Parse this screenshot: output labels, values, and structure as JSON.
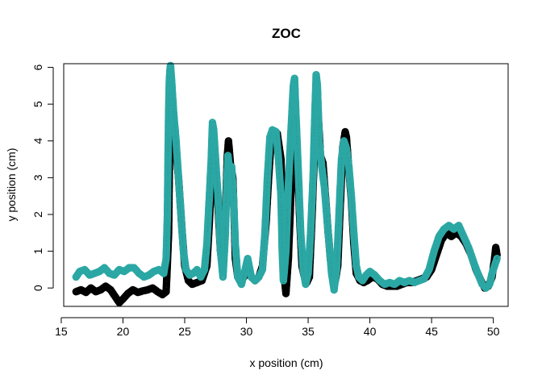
{
  "chart_data": {
    "type": "scatter",
    "title": "ZOC",
    "xlabel": "x position (cm)",
    "ylabel": "y position (cm)",
    "xlim": [
      15.2,
      51.2
    ],
    "ylim": [
      -0.5,
      6.1
    ],
    "xticks": [
      15,
      20,
      25,
      30,
      35,
      40,
      45,
      50
    ],
    "yticks": [
      0,
      1,
      2,
      3,
      4,
      5,
      6
    ],
    "grid": false,
    "series": [
      {
        "color": "#000000",
        "points": [
          [
            16.2,
            -0.1
          ],
          [
            16.6,
            -0.05
          ],
          [
            17.0,
            -0.12
          ],
          [
            17.4,
            0.0
          ],
          [
            17.8,
            -0.1
          ],
          [
            18.2,
            -0.05
          ],
          [
            18.6,
            0.05
          ],
          [
            19.0,
            -0.05
          ],
          [
            19.4,
            -0.25
          ],
          [
            19.7,
            -0.4
          ],
          [
            20.0,
            -0.3
          ],
          [
            20.4,
            -0.15
          ],
          [
            20.8,
            -0.05
          ],
          [
            21.2,
            -0.12
          ],
          [
            21.6,
            -0.08
          ],
          [
            22.0,
            -0.05
          ],
          [
            22.4,
            0.0
          ],
          [
            22.8,
            -0.1
          ],
          [
            23.2,
            -0.18
          ],
          [
            23.5,
            -0.1
          ],
          [
            23.7,
            1.5
          ],
          [
            23.75,
            3.0
          ],
          [
            23.8,
            4.5
          ],
          [
            23.85,
            5.1
          ],
          [
            23.9,
            5.3
          ],
          [
            24.0,
            4.8
          ],
          [
            24.2,
            4.0
          ],
          [
            24.5,
            3.0
          ],
          [
            24.8,
            1.5
          ],
          [
            25.0,
            0.6
          ],
          [
            25.3,
            0.2
          ],
          [
            25.6,
            0.1
          ],
          [
            26.0,
            0.15
          ],
          [
            26.4,
            0.2
          ],
          [
            26.8,
            0.6
          ],
          [
            27.0,
            1.8
          ],
          [
            27.2,
            3.2
          ],
          [
            27.35,
            4.0
          ],
          [
            27.5,
            3.4
          ],
          [
            27.7,
            2.2
          ],
          [
            27.9,
            1.0
          ],
          [
            28.1,
            0.5
          ],
          [
            28.3,
            2.0
          ],
          [
            28.45,
            3.6
          ],
          [
            28.55,
            4.0
          ],
          [
            28.7,
            3.4
          ],
          [
            28.9,
            3.0
          ],
          [
            29.0,
            2.0
          ],
          [
            29.1,
            0.8
          ],
          [
            29.3,
            0.3
          ],
          [
            29.5,
            0.2
          ],
          [
            29.8,
            0.3
          ],
          [
            30.1,
            0.5
          ],
          [
            30.4,
            0.3
          ],
          [
            30.7,
            0.2
          ],
          [
            31.0,
            0.3
          ],
          [
            31.3,
            0.6
          ],
          [
            31.6,
            1.8
          ],
          [
            31.8,
            3.0
          ],
          [
            32.0,
            4.0
          ],
          [
            32.2,
            4.25
          ],
          [
            32.5,
            4.2
          ],
          [
            32.8,
            3.5
          ],
          [
            33.0,
            1.5
          ],
          [
            33.1,
            0.2
          ],
          [
            33.2,
            -0.15
          ],
          [
            33.4,
            0.8
          ],
          [
            33.6,
            2.5
          ],
          [
            33.8,
            4.0
          ],
          [
            33.95,
            4.6
          ],
          [
            34.1,
            3.8
          ],
          [
            34.3,
            2.0
          ],
          [
            34.5,
            0.6
          ],
          [
            34.7,
            0.3
          ],
          [
            34.9,
            0.15
          ],
          [
            35.1,
            0.3
          ],
          [
            35.3,
            1.8
          ],
          [
            35.5,
            3.6
          ],
          [
            35.6,
            4.7
          ],
          [
            35.7,
            5.2
          ],
          [
            35.8,
            4.8
          ],
          [
            36.0,
            3.6
          ],
          [
            36.2,
            3.4
          ],
          [
            36.4,
            2.5
          ],
          [
            36.6,
            1.6
          ],
          [
            36.8,
            0.8
          ],
          [
            37.0,
            0.3
          ],
          [
            37.2,
            0.2
          ],
          [
            37.4,
            0.6
          ],
          [
            37.6,
            2.2
          ],
          [
            37.8,
            3.8
          ],
          [
            38.0,
            4.25
          ],
          [
            38.1,
            4.1
          ],
          [
            38.3,
            3.2
          ],
          [
            38.5,
            2.4
          ],
          [
            38.7,
            1.2
          ],
          [
            38.9,
            0.4
          ],
          [
            39.2,
            0.2
          ],
          [
            39.5,
            0.15
          ],
          [
            39.8,
            0.2
          ],
          [
            40.2,
            0.3
          ],
          [
            40.6,
            0.25
          ],
          [
            41.0,
            0.1
          ],
          [
            41.4,
            0.05
          ],
          [
            41.8,
            0.05
          ],
          [
            42.2,
            0.05
          ],
          [
            42.6,
            0.1
          ],
          [
            43.0,
            0.15
          ],
          [
            43.4,
            0.15
          ],
          [
            43.8,
            0.2
          ],
          [
            44.2,
            0.25
          ],
          [
            44.6,
            0.3
          ],
          [
            45.0,
            0.5
          ],
          [
            45.4,
            0.9
          ],
          [
            45.8,
            1.3
          ],
          [
            46.2,
            1.5
          ],
          [
            46.6,
            1.4
          ],
          [
            47.0,
            1.5
          ],
          [
            47.4,
            1.4
          ],
          [
            47.8,
            1.2
          ],
          [
            48.2,
            0.9
          ],
          [
            48.6,
            0.5
          ],
          [
            49.0,
            0.2
          ],
          [
            49.3,
            0.0
          ],
          [
            49.6,
            0.05
          ],
          [
            49.9,
            0.3
          ],
          [
            50.1,
            0.8
          ],
          [
            50.2,
            1.1
          ],
          [
            50.3,
            0.9
          ]
        ]
      },
      {
        "color": "#2ba7a4",
        "points": [
          [
            16.2,
            0.3
          ],
          [
            16.5,
            0.45
          ],
          [
            16.9,
            0.5
          ],
          [
            17.3,
            0.35
          ],
          [
            17.7,
            0.4
          ],
          [
            18.1,
            0.45
          ],
          [
            18.5,
            0.55
          ],
          [
            18.9,
            0.4
          ],
          [
            19.3,
            0.35
          ],
          [
            19.7,
            0.5
          ],
          [
            20.1,
            0.45
          ],
          [
            20.5,
            0.55
          ],
          [
            20.9,
            0.55
          ],
          [
            21.3,
            0.4
          ],
          [
            21.7,
            0.3
          ],
          [
            22.1,
            0.35
          ],
          [
            22.5,
            0.45
          ],
          [
            22.9,
            0.5
          ],
          [
            23.3,
            0.4
          ],
          [
            23.5,
            0.8
          ],
          [
            23.6,
            2.0
          ],
          [
            23.65,
            3.5
          ],
          [
            23.7,
            4.8
          ],
          [
            23.75,
            5.6
          ],
          [
            23.8,
            5.9
          ],
          [
            23.85,
            6.05
          ],
          [
            23.95,
            5.6
          ],
          [
            24.1,
            4.8
          ],
          [
            24.3,
            4.0
          ],
          [
            24.5,
            3.0
          ],
          [
            24.7,
            2.0
          ],
          [
            24.9,
            1.0
          ],
          [
            25.1,
            0.5
          ],
          [
            25.4,
            0.35
          ],
          [
            25.7,
            0.4
          ],
          [
            26.0,
            0.5
          ],
          [
            26.3,
            0.3
          ],
          [
            26.6,
            0.5
          ],
          [
            26.8,
            1.2
          ],
          [
            27.0,
            2.5
          ],
          [
            27.15,
            3.5
          ],
          [
            27.25,
            4.5
          ],
          [
            27.35,
            4.3
          ],
          [
            27.5,
            3.5
          ],
          [
            27.7,
            2.5
          ],
          [
            27.9,
            1.0
          ],
          [
            28.1,
            0.3
          ],
          [
            28.3,
            1.5
          ],
          [
            28.4,
            2.8
          ],
          [
            28.5,
            3.6
          ],
          [
            28.65,
            3.2
          ],
          [
            28.8,
            3.3
          ],
          [
            28.95,
            2.5
          ],
          [
            29.1,
            1.2
          ],
          [
            29.3,
            0.3
          ],
          [
            29.6,
            0.1
          ],
          [
            29.9,
            0.5
          ],
          [
            30.1,
            0.8
          ],
          [
            30.4,
            0.3
          ],
          [
            30.7,
            0.2
          ],
          [
            31.0,
            0.3
          ],
          [
            31.3,
            0.5
          ],
          [
            31.5,
            1.5
          ],
          [
            31.7,
            3.0
          ],
          [
            31.9,
            4.1
          ],
          [
            32.1,
            4.3
          ],
          [
            32.4,
            4.25
          ],
          [
            32.6,
            3.5
          ],
          [
            32.8,
            2.5
          ],
          [
            32.9,
            1.0
          ],
          [
            33.0,
            0.2
          ],
          [
            33.2,
            1.0
          ],
          [
            33.4,
            2.8
          ],
          [
            33.6,
            4.2
          ],
          [
            33.8,
            5.5
          ],
          [
            33.9,
            5.7
          ],
          [
            34.0,
            4.8
          ],
          [
            34.2,
            3.2
          ],
          [
            34.4,
            1.5
          ],
          [
            34.6,
            0.5
          ],
          [
            34.8,
            0.1
          ],
          [
            35.0,
            0.4
          ],
          [
            35.2,
            1.5
          ],
          [
            35.4,
            3.0
          ],
          [
            35.55,
            4.8
          ],
          [
            35.65,
            5.8
          ],
          [
            35.75,
            5.5
          ],
          [
            35.9,
            4.0
          ],
          [
            36.1,
            3.3
          ],
          [
            36.3,
            2.8
          ],
          [
            36.5,
            2.0
          ],
          [
            36.7,
            1.2
          ],
          [
            36.9,
            0.4
          ],
          [
            37.1,
            -0.05
          ],
          [
            37.3,
            0.5
          ],
          [
            37.5,
            2.0
          ],
          [
            37.7,
            3.5
          ],
          [
            37.9,
            4.0
          ],
          [
            38.1,
            3.8
          ],
          [
            38.3,
            3.3
          ],
          [
            38.5,
            2.5
          ],
          [
            38.7,
            1.5
          ],
          [
            38.9,
            0.6
          ],
          [
            39.1,
            0.3
          ],
          [
            39.4,
            0.2
          ],
          [
            39.7,
            0.35
          ],
          [
            40.0,
            0.45
          ],
          [
            40.4,
            0.35
          ],
          [
            40.8,
            0.2
          ],
          [
            41.2,
            0.1
          ],
          [
            41.6,
            0.15
          ],
          [
            42.0,
            0.1
          ],
          [
            42.4,
            0.2
          ],
          [
            42.8,
            0.15
          ],
          [
            43.2,
            0.2
          ],
          [
            43.6,
            0.15
          ],
          [
            44.0,
            0.2
          ],
          [
            44.4,
            0.25
          ],
          [
            44.8,
            0.5
          ],
          [
            45.2,
            1.0
          ],
          [
            45.6,
            1.4
          ],
          [
            46.0,
            1.6
          ],
          [
            46.4,
            1.7
          ],
          [
            46.8,
            1.6
          ],
          [
            47.2,
            1.7
          ],
          [
            47.6,
            1.4
          ],
          [
            48.0,
            1.1
          ],
          [
            48.4,
            0.7
          ],
          [
            48.8,
            0.35
          ],
          [
            49.1,
            0.1
          ],
          [
            49.4,
            0.0
          ],
          [
            49.7,
            0.1
          ],
          [
            49.9,
            0.4
          ],
          [
            50.1,
            0.6
          ],
          [
            50.3,
            0.8
          ]
        ]
      }
    ]
  }
}
